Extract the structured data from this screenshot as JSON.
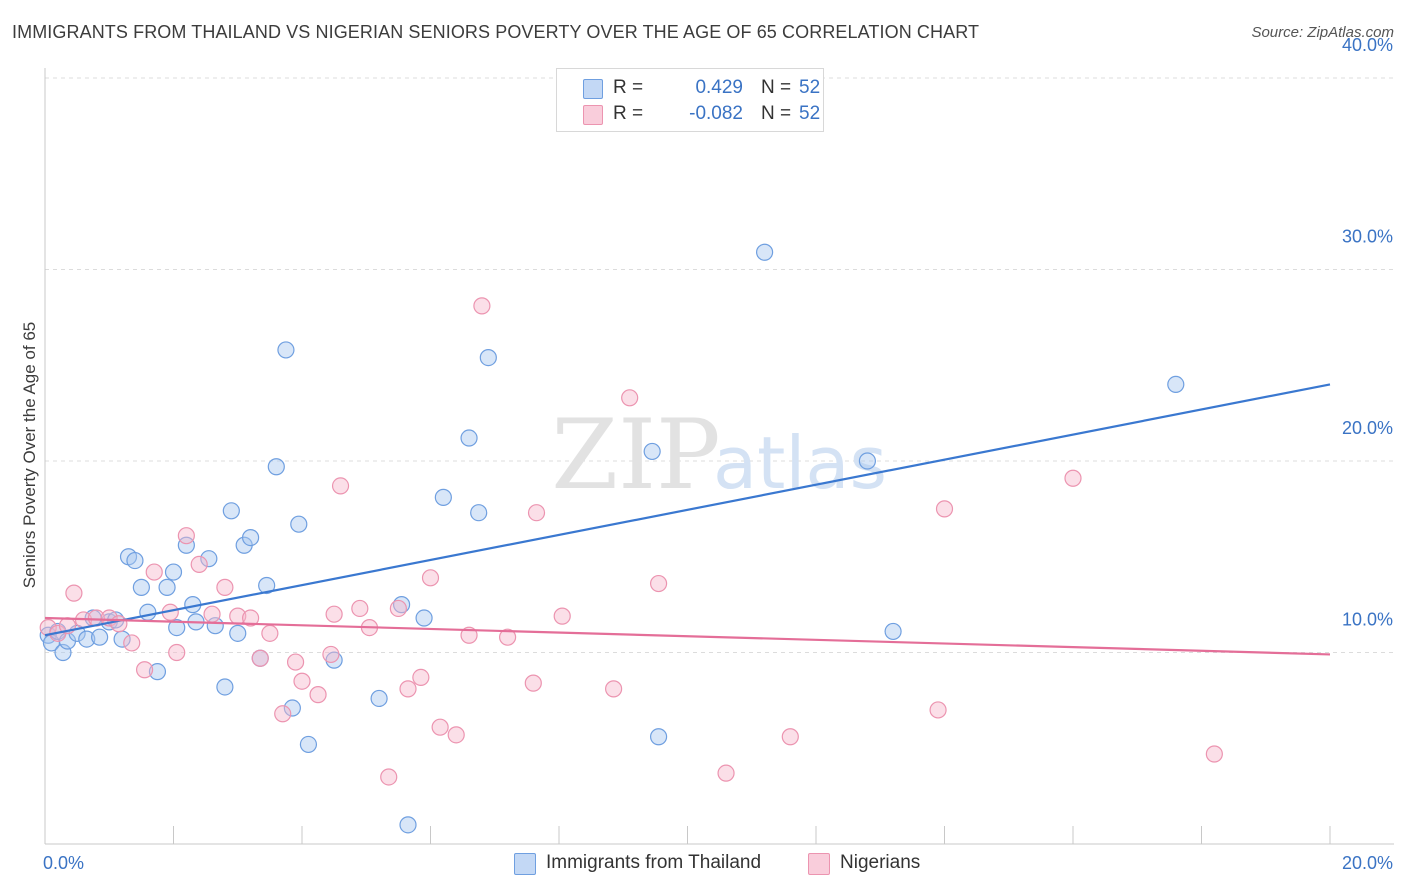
{
  "title": "IMMIGRANTS FROM THAILAND VS NIGERIAN SENIORS POVERTY OVER THE AGE OF 65 CORRELATION CHART",
  "source": "Source: ZipAtlas.com",
  "watermark": {
    "zip": "ZIP",
    "atlas": "atlas"
  },
  "legend": {
    "rows": [
      {
        "r_label": "R =",
        "r_value": "0.429",
        "n_label": "N =",
        "n_value": "52"
      },
      {
        "r_label": "R =",
        "r_value": "-0.082",
        "n_label": "N =",
        "n_value": "52"
      }
    ]
  },
  "bottom_legend": [
    "Immigrants from Thailand",
    "Nigerians"
  ],
  "colors": {
    "blue_fill": "#a8c8f0",
    "blue_stroke": "#6f9fe0",
    "blue_line": "#3a78d0",
    "pink_fill": "#f6b8cc",
    "pink_stroke": "#ec94b0",
    "pink_line": "#e46e98",
    "tick_label": "#3a73c4",
    "grid": "#dcdcdc"
  },
  "chart_data": {
    "type": "scatter",
    "title": "IMMIGRANTS FROM THAILAND VS NIGERIAN SENIORS POVERTY OVER THE AGE OF 65 CORRELATION CHART",
    "xlabel": "",
    "ylabel": "Seniors Poverty Over the Age of 65",
    "xlim": [
      0,
      20
    ],
    "ylim": [
      0,
      40
    ],
    "x_tick_labels": [
      "0.0%",
      "20.0%"
    ],
    "y_ticks": [
      10,
      20,
      30,
      40
    ],
    "y_tick_labels": [
      "10.0%",
      "20.0%",
      "30.0%",
      "40.0%"
    ],
    "grid": true,
    "legend_position": "top-center",
    "series": [
      {
        "name": "Immigrants from Thailand",
        "color": "#6f9fe0",
        "trend": {
          "x": [
            0,
            20
          ],
          "y": [
            10.9,
            24.0
          ]
        },
        "points": [
          [
            0.05,
            10.9
          ],
          [
            0.1,
            10.5
          ],
          [
            0.2,
            11.1
          ],
          [
            0.28,
            10.0
          ],
          [
            0.35,
            10.6
          ],
          [
            0.5,
            11.0
          ],
          [
            0.65,
            10.7
          ],
          [
            0.75,
            11.8
          ],
          [
            0.85,
            10.8
          ],
          [
            1.0,
            11.6
          ],
          [
            1.1,
            11.7
          ],
          [
            1.2,
            10.7
          ],
          [
            1.3,
            15.0
          ],
          [
            1.4,
            14.8
          ],
          [
            1.5,
            13.4
          ],
          [
            1.6,
            12.1
          ],
          [
            1.75,
            9.0
          ],
          [
            1.9,
            13.4
          ],
          [
            2.0,
            14.2
          ],
          [
            2.05,
            11.3
          ],
          [
            2.2,
            15.6
          ],
          [
            2.3,
            12.5
          ],
          [
            2.35,
            11.6
          ],
          [
            2.55,
            14.9
          ],
          [
            2.65,
            11.4
          ],
          [
            2.8,
            8.2
          ],
          [
            2.9,
            17.4
          ],
          [
            3.0,
            11.0
          ],
          [
            3.1,
            15.6
          ],
          [
            3.2,
            16.0
          ],
          [
            3.35,
            9.7
          ],
          [
            3.45,
            13.5
          ],
          [
            3.6,
            19.7
          ],
          [
            3.75,
            25.8
          ],
          [
            3.85,
            7.1
          ],
          [
            3.95,
            16.7
          ],
          [
            4.1,
            5.2
          ],
          [
            4.5,
            9.6
          ],
          [
            5.2,
            7.6
          ],
          [
            5.55,
            12.5
          ],
          [
            5.65,
            1.0
          ],
          [
            5.9,
            11.8
          ],
          [
            6.2,
            18.1
          ],
          [
            6.6,
            21.2
          ],
          [
            6.75,
            17.3
          ],
          [
            6.9,
            25.4
          ],
          [
            9.45,
            20.5
          ],
          [
            9.55,
            5.6
          ],
          [
            11.2,
            30.9
          ],
          [
            12.8,
            20.0
          ],
          [
            13.2,
            11.1
          ],
          [
            17.6,
            24.0
          ]
        ]
      },
      {
        "name": "Nigerians",
        "color": "#ec94b0",
        "trend": {
          "x": [
            0,
            20
          ],
          "y": [
            11.8,
            9.9
          ]
        },
        "points": [
          [
            0.05,
            11.3
          ],
          [
            0.2,
            11.0
          ],
          [
            0.35,
            11.4
          ],
          [
            0.45,
            13.1
          ],
          [
            0.6,
            11.7
          ],
          [
            0.8,
            11.8
          ],
          [
            1.0,
            11.8
          ],
          [
            1.15,
            11.5
          ],
          [
            1.35,
            10.5
          ],
          [
            1.55,
            9.1
          ],
          [
            1.7,
            14.2
          ],
          [
            1.95,
            12.1
          ],
          [
            2.05,
            10.0
          ],
          [
            2.2,
            16.1
          ],
          [
            2.4,
            14.6
          ],
          [
            2.6,
            12.0
          ],
          [
            2.8,
            13.4
          ],
          [
            3.0,
            11.9
          ],
          [
            3.2,
            11.8
          ],
          [
            3.35,
            9.7
          ],
          [
            3.5,
            11.0
          ],
          [
            3.7,
            6.8
          ],
          [
            3.9,
            9.5
          ],
          [
            4.0,
            8.5
          ],
          [
            4.25,
            7.8
          ],
          [
            4.45,
            9.9
          ],
          [
            4.6,
            18.7
          ],
          [
            4.5,
            12.0
          ],
          [
            4.9,
            12.3
          ],
          [
            5.05,
            11.3
          ],
          [
            5.35,
            3.5
          ],
          [
            5.5,
            12.3
          ],
          [
            5.65,
            8.1
          ],
          [
            5.85,
            8.7
          ],
          [
            6.0,
            13.9
          ],
          [
            6.15,
            6.1
          ],
          [
            6.4,
            5.7
          ],
          [
            6.6,
            10.9
          ],
          [
            6.8,
            28.1
          ],
          [
            7.2,
            10.8
          ],
          [
            7.6,
            8.4
          ],
          [
            7.65,
            17.3
          ],
          [
            8.05,
            11.9
          ],
          [
            8.85,
            8.1
          ],
          [
            9.1,
            23.3
          ],
          [
            9.55,
            13.6
          ],
          [
            10.6,
            3.7
          ],
          [
            11.6,
            5.6
          ],
          [
            13.9,
            7.0
          ],
          [
            14.0,
            17.5
          ],
          [
            16.0,
            19.1
          ],
          [
            18.2,
            4.7
          ]
        ]
      }
    ]
  }
}
